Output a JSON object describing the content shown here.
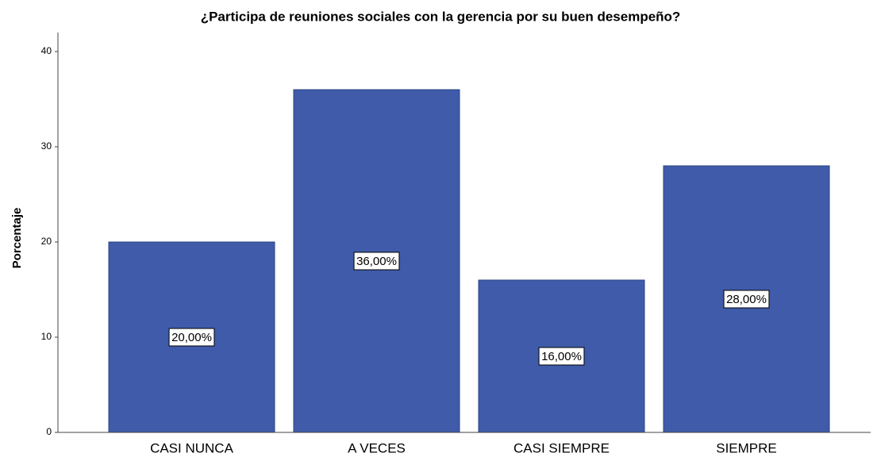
{
  "chart_data": {
    "type": "bar",
    "title": "¿Participa de reuniones sociales con la gerencia por su buen desempeño?",
    "y_label": "Porcentaje",
    "categories": [
      "CASI NUNCA",
      "A VECES",
      "CASI SIEMPRE",
      "SIEMPRE"
    ],
    "values": [
      20,
      36,
      16,
      28
    ],
    "value_labels": [
      "20,00%",
      "36,00%",
      "16,00%",
      "28,00%"
    ],
    "color": "#3f5ba9",
    "ylim": [
      0,
      42
    ],
    "yticks": [
      0,
      10,
      20,
      30,
      40
    ],
    "grid": false
  }
}
